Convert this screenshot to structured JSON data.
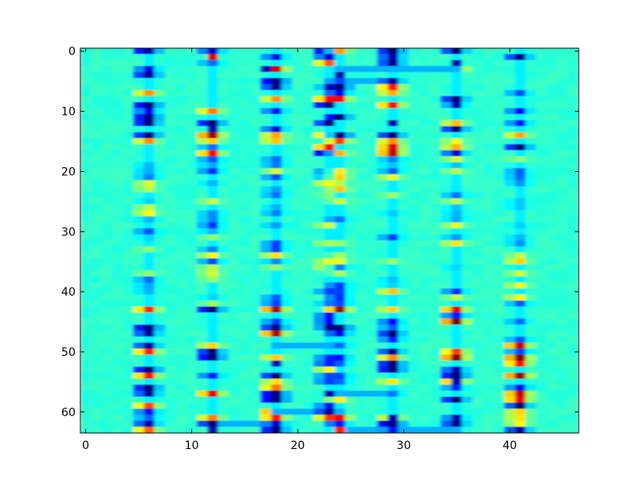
{
  "chart_data": {
    "type": "heatmap",
    "title": "",
    "xlabel": "",
    "ylabel": "",
    "colormap": "jet",
    "n_cols": 47,
    "n_rows": 64,
    "xlim": [
      -0.5,
      46.5
    ],
    "ylim": [
      63.5,
      -0.5
    ],
    "x_ticks": [
      0,
      10,
      20,
      30,
      40
    ],
    "y_ticks": [
      0,
      10,
      20,
      30,
      40,
      50,
      60
    ],
    "x_tick_labels": [
      "0",
      "10",
      "20",
      "30",
      "40"
    ],
    "y_tick_labels": [
      "0",
      "10",
      "20",
      "30",
      "40",
      "50",
      "60"
    ],
    "background_value": 0.42,
    "feature_columns": [
      6,
      12,
      18,
      23,
      24,
      29,
      35,
      41
    ],
    "notable_cells": [
      {
        "row": 0,
        "col": 6,
        "value": 0.05
      },
      {
        "row": 1,
        "col": 12,
        "value": 0.9
      },
      {
        "row": 3,
        "col": 17,
        "value": 0.05
      },
      {
        "row": 4,
        "col": 6,
        "value": 0.03
      },
      {
        "row": 4,
        "col": 24,
        "value": 0.05
      },
      {
        "row": 2,
        "col": 35,
        "value": 0.05
      },
      {
        "row": 9,
        "col": 35,
        "value": 0.05
      },
      {
        "row": 12,
        "col": 29,
        "value": 0.05
      },
      {
        "row": 13,
        "col": 12,
        "value": 0.05
      },
      {
        "row": 52,
        "col": 18,
        "value": 0.05
      },
      {
        "row": 55,
        "col": 35,
        "value": 0.05
      },
      {
        "row": 57,
        "col": 23,
        "value": 0.05
      },
      {
        "row": 61,
        "col": 29,
        "value": 0.05
      },
      {
        "row": 61,
        "col": 35,
        "value": 0.05
      },
      {
        "row": 63,
        "col": 12,
        "value": 0.05
      },
      {
        "row": 63,
        "col": 24,
        "value": 0.85
      },
      {
        "row": 63,
        "col": 41,
        "value": 0.05
      }
    ]
  }
}
